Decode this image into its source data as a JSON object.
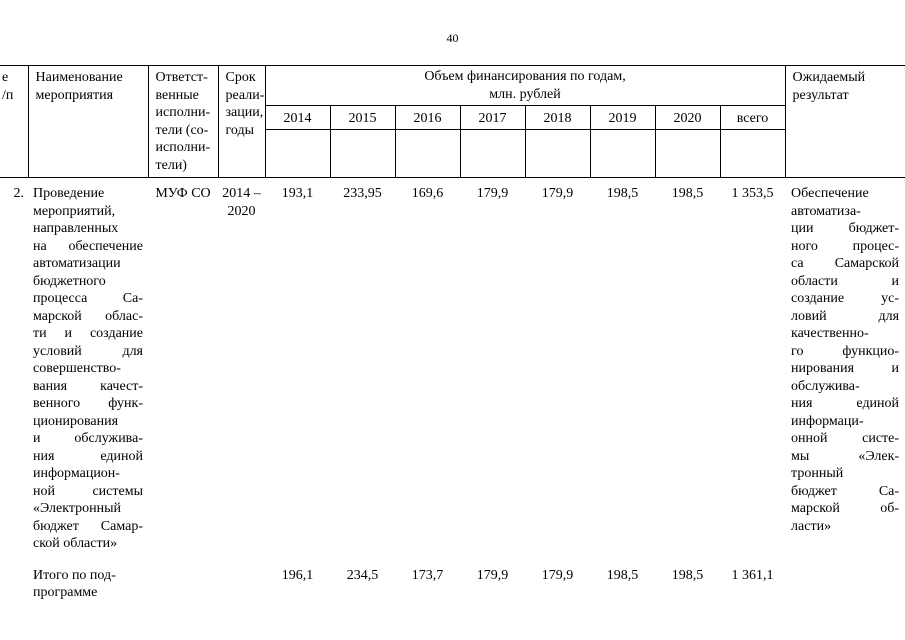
{
  "page": {
    "number": "40"
  },
  "table": {
    "header": {
      "num": "е\n/п",
      "name": "Наименование\nмероприятия",
      "executors": "Ответст-\nвенные\nисполни-\nтели (со-\nисполни-\nтели)",
      "term": "Срок\nреали-\nзации,\nгоды",
      "financing_title": "Объем финансирования по годам,\nмлн. рублей",
      "years": [
        "2014",
        "2015",
        "2016",
        "2017",
        "2018",
        "2019",
        "2020",
        "всего"
      ],
      "result": "Ожидаемый\nрезультат"
    },
    "row2": {
      "num": "2.",
      "name": "Проведение\nмероприятий,\nнаправленных\nна обеспечение\nавтоматизации\nбюджетного\nпроцесса Са-\nмарской облас-\nти и создание\nусловий для\nсовершенство-\nвания качест-\nвенного функ-\nционирования\nи обслужива-\nния единой\nинформацион-\nной системы\n«Электронный\nбюджет Самар-\nской области»",
      "executor": "МУФ СО",
      "term": "2014 –\n2020",
      "values": [
        "193,1",
        "233,95",
        "169,6",
        "179,9",
        "179,9",
        "198,5",
        "198,5",
        "1 353,5"
      ],
      "result": "Обеспечение\nавтоматиза-\nции бюджет-\nного процес-\nса Самарской\nобласти и\nсоздание ус-\nловий для\nкачественно-\nго функцио-\nнирования и\nобслужива-\nния единой\nинформаци-\nонной систе-\nмы «Элек-\nтронный\nбюджет Са-\nмарской об-\nласти»"
    },
    "subtotal": {
      "label": "Итого по под-\nпрограмме",
      "values": [
        "196,1",
        "234,5",
        "173,7",
        "179,9",
        "179,9",
        "198,5",
        "198,5",
        "1 361,1"
      ]
    }
  }
}
